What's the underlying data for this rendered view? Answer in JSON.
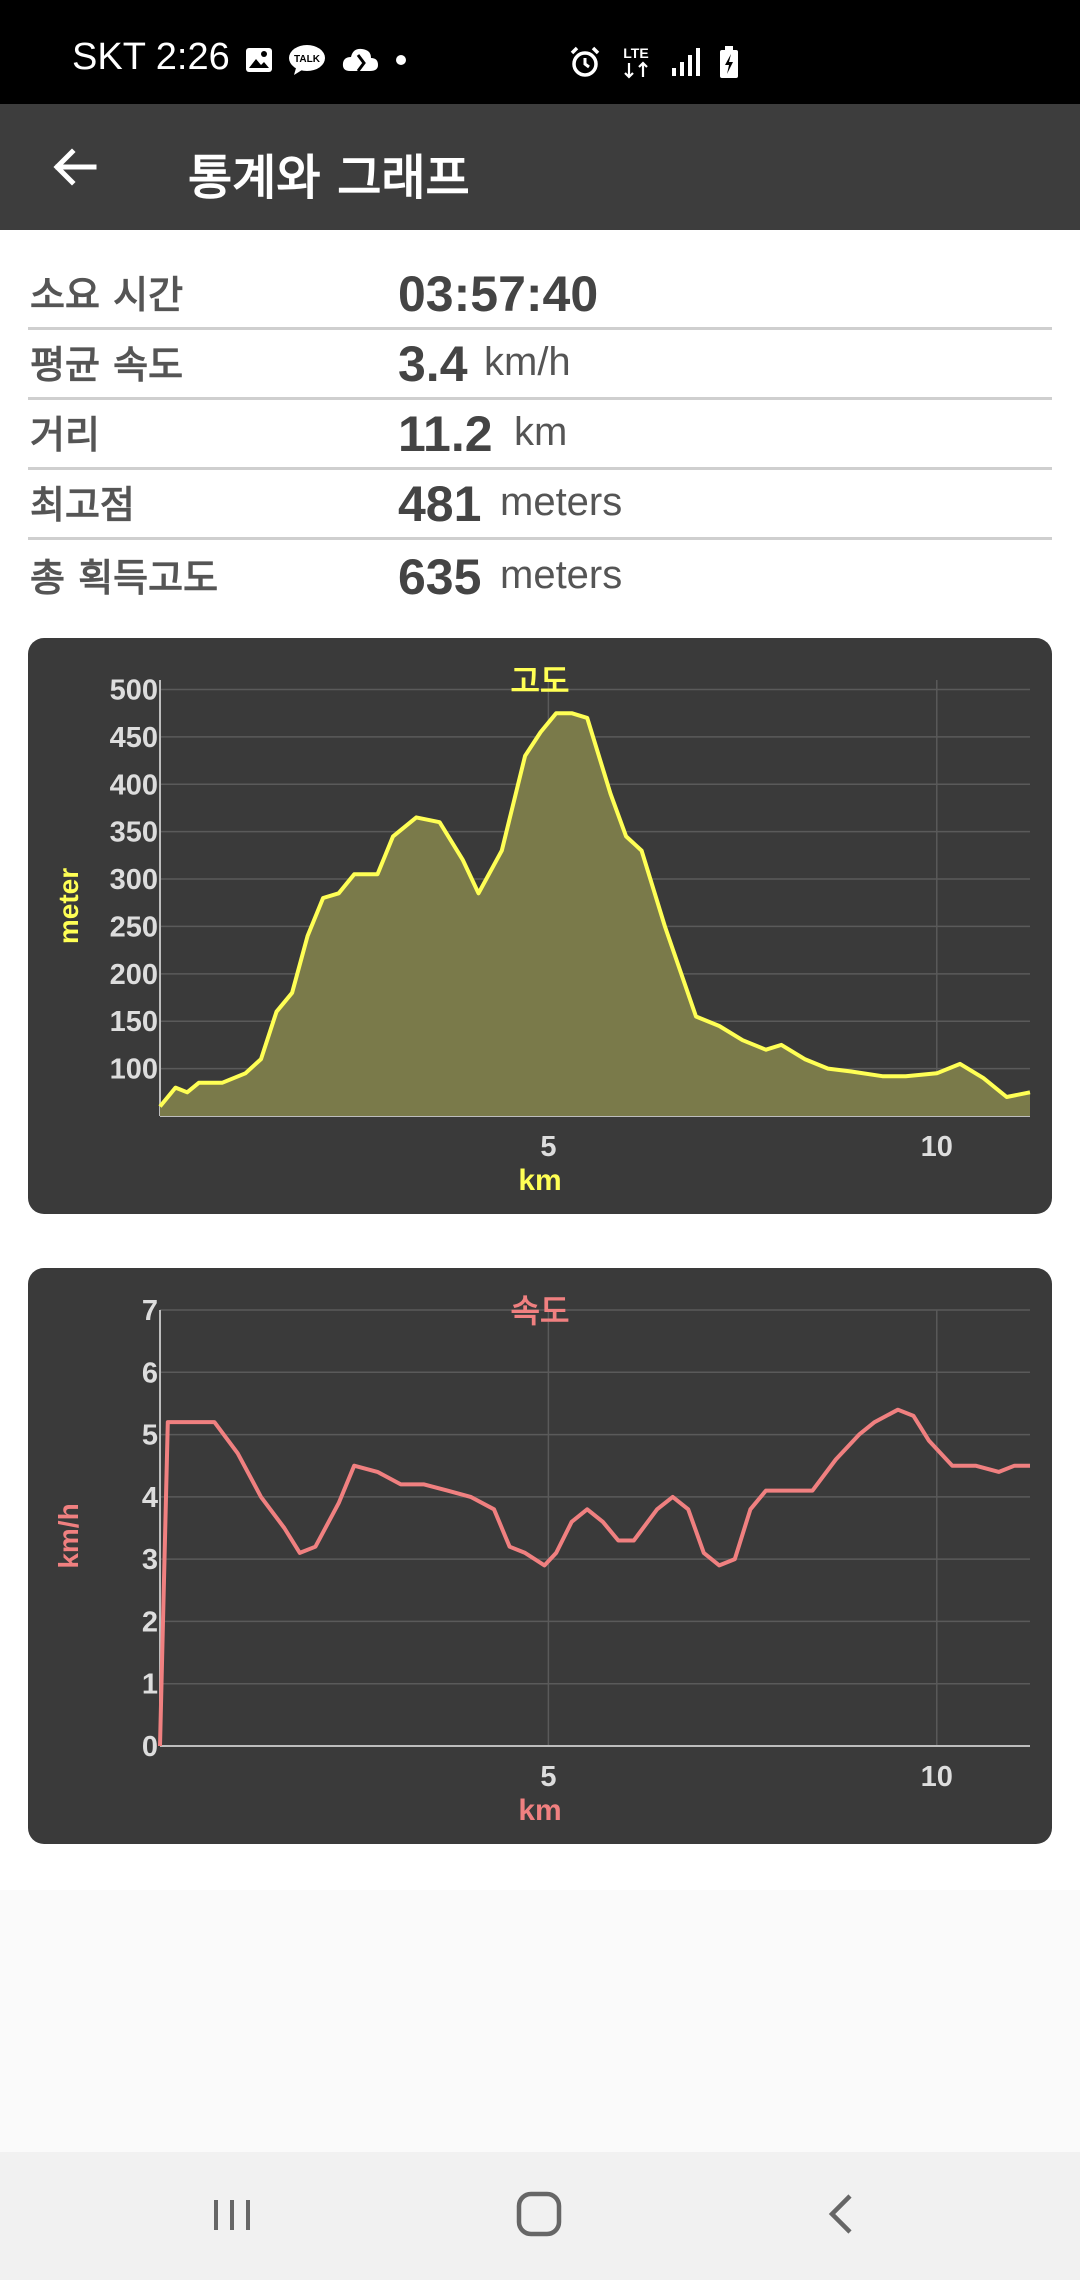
{
  "status_bar": {
    "carrier_time": "SKT 2:26",
    "left_icons": [
      "gallery-icon",
      "kakaotalk-icon",
      "cloud-icon",
      "dot-icon"
    ],
    "right_icons": [
      "alarm-icon",
      "lte-icon",
      "signal-icon",
      "battery-charging-icon"
    ],
    "lte_label": "LTE"
  },
  "app_bar": {
    "title": "통계와 그래프",
    "back_icon": "back-arrow-icon"
  },
  "stats": {
    "duration": {
      "label": "소요 시간",
      "value": "03:57:40",
      "unit": ""
    },
    "avg_speed": {
      "label": "평균 속도",
      "value": "3.4",
      "unit": "km/h"
    },
    "distance": {
      "label": "거리",
      "value": "11.2",
      "unit": "km"
    },
    "highest": {
      "label": "최고점",
      "value": "481",
      "unit": "meters"
    },
    "total_gain": {
      "label": "총 획득고도",
      "value": "635",
      "unit": "meters"
    }
  },
  "chart_data": [
    {
      "type": "area",
      "title": "고도",
      "xlabel": "km",
      "ylabel": "meter",
      "xlim": [
        0,
        11.2
      ],
      "ylim": [
        50,
        510
      ],
      "xticks": [
        5,
        10
      ],
      "yticks": [
        100,
        150,
        200,
        250,
        300,
        350,
        400,
        450,
        500
      ],
      "grid": true,
      "color": "#ffff55",
      "fill": "#7a7a4a",
      "x": [
        0,
        0.2,
        0.35,
        0.5,
        0.8,
        1.1,
        1.3,
        1.5,
        1.7,
        1.9,
        2.1,
        2.3,
        2.5,
        2.8,
        3.0,
        3.3,
        3.6,
        3.9,
        4.1,
        4.4,
        4.7,
        4.9,
        5.1,
        5.3,
        5.5,
        5.8,
        6.0,
        6.2,
        6.5,
        6.9,
        7.2,
        7.5,
        7.8,
        8.0,
        8.3,
        8.6,
        8.9,
        9.3,
        9.6,
        10.0,
        10.3,
        10.6,
        10.9,
        11.2
      ],
      "y": [
        60,
        80,
        75,
        85,
        85,
        95,
        110,
        160,
        180,
        240,
        280,
        285,
        305,
        305,
        345,
        365,
        360,
        320,
        285,
        330,
        430,
        455,
        475,
        475,
        470,
        390,
        345,
        330,
        250,
        155,
        145,
        130,
        120,
        125,
        110,
        100,
        97,
        92,
        92,
        95,
        105,
        90,
        70,
        75
      ]
    },
    {
      "type": "line",
      "title": "속도",
      "xlabel": "km",
      "ylabel": "km/h",
      "xlim": [
        0,
        11.2
      ],
      "ylim": [
        0,
        7
      ],
      "xticks": [
        5,
        10
      ],
      "yticks": [
        0,
        1,
        2,
        3,
        4,
        5,
        6,
        7
      ],
      "grid": true,
      "color": "#f08080",
      "x": [
        0,
        0.1,
        0.2,
        0.4,
        0.7,
        1.0,
        1.3,
        1.6,
        1.8,
        2.0,
        2.3,
        2.5,
        2.8,
        3.1,
        3.4,
        3.7,
        4.0,
        4.3,
        4.5,
        4.7,
        4.95,
        5.1,
        5.3,
        5.5,
        5.7,
        5.9,
        6.1,
        6.4,
        6.6,
        6.8,
        7.0,
        7.2,
        7.4,
        7.6,
        7.8,
        8.1,
        8.4,
        8.7,
        9.0,
        9.2,
        9.5,
        9.7,
        9.9,
        10.2,
        10.5,
        10.8,
        11.0,
        11.2
      ],
      "y": [
        0,
        5.2,
        5.2,
        5.2,
        5.2,
        4.7,
        4.0,
        3.5,
        3.1,
        3.2,
        3.9,
        4.5,
        4.4,
        4.2,
        4.2,
        4.1,
        4.0,
        3.8,
        3.2,
        3.1,
        2.9,
        3.1,
        3.6,
        3.8,
        3.6,
        3.3,
        3.3,
        3.8,
        4.0,
        3.8,
        3.1,
        2.9,
        3.0,
        3.8,
        4.1,
        4.1,
        4.1,
        4.6,
        5.0,
        5.2,
        5.4,
        5.3,
        4.9,
        4.5,
        4.5,
        4.4,
        4.5,
        4.5
      ]
    }
  ],
  "nav_bar": {
    "recents_icon": "recents-icon",
    "home_icon": "home-icon",
    "back_icon": "nav-back-icon"
  }
}
